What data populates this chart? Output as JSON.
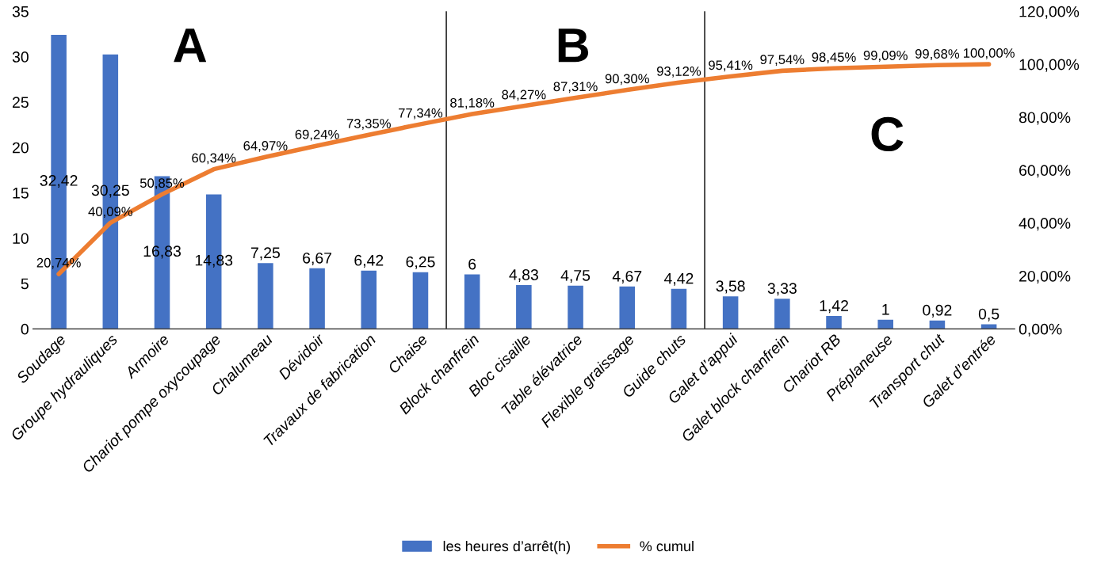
{
  "chart_data": {
    "type": "bar",
    "categories": [
      "Soudage",
      "Groupe hydrauliques",
      "Armoire",
      "Chariot pompe oxycoupage",
      "Chalumeau",
      "Dévidoir",
      "Travaux de fabrication",
      "Chaise",
      "Block chanfrein",
      "Bloc cisaille",
      "Table élévatrice",
      "Flexible graissage",
      "Guide chuts",
      "Galet d’appui",
      "Galet block chanfrein",
      "Chariot RB",
      "Préplaneuse",
      "Transport chut",
      "Galet d’entrée"
    ],
    "series": [
      {
        "name": "les heures d’arrêt(h)",
        "color": "#4472c4",
        "values": [
          32.42,
          30.25,
          16.83,
          14.83,
          7.25,
          6.67,
          6.42,
          6.25,
          6,
          4.83,
          4.75,
          4.67,
          4.42,
          3.58,
          3.33,
          1.42,
          1,
          0.92,
          0.5
        ],
        "value_labels": [
          "32,42",
          "30,25",
          "16,83",
          "14,83",
          "7,25",
          "6,67",
          "6,42",
          "6,25",
          "6",
          "4,83",
          "4,75",
          "4,67",
          "4,42",
          "3,58",
          "3,33",
          "1,42",
          "1",
          "0,92",
          "0,5"
        ]
      },
      {
        "name": "% cumul",
        "type": "line",
        "axis": "y2",
        "color": "#ed7d31",
        "values": [
          20.74,
          40.09,
          50.85,
          60.34,
          64.97,
          69.24,
          73.35,
          77.34,
          81.18,
          84.27,
          87.31,
          90.3,
          93.12,
          95.41,
          97.54,
          98.45,
          99.09,
          99.68,
          100.0
        ],
        "value_labels": [
          "20,74%",
          "40,09%",
          "50,85%",
          "60,34%",
          "64,97%",
          "69,24%",
          "73,35%",
          "77,34%",
          "81,18%",
          "84,27%",
          "87,31%",
          "90,30%",
          "93,12%",
          "95,41%",
          "97,54%",
          "98,45%",
          "99,09%",
          "99,68%",
          "100,00%"
        ]
      }
    ],
    "ylim": [
      0,
      35
    ],
    "yticks": [
      0,
      5,
      10,
      15,
      20,
      25,
      30,
      35
    ],
    "y2lim": [
      0,
      120
    ],
    "y2ticks": [
      {
        "value": 0,
        "label": "0,00%"
      },
      {
        "value": 20,
        "label": "20,00%"
      },
      {
        "value": 40,
        "label": "40,00%"
      },
      {
        "value": 60,
        "label": "60,00%"
      },
      {
        "value": 80,
        "label": "80,00%"
      },
      {
        "value": 100,
        "label": "100,00%"
      },
      {
        "value": 120,
        "label": "120,00%"
      }
    ],
    "annotations": [
      "A",
      "B",
      "C"
    ],
    "legend": "bottom",
    "grid": false
  }
}
